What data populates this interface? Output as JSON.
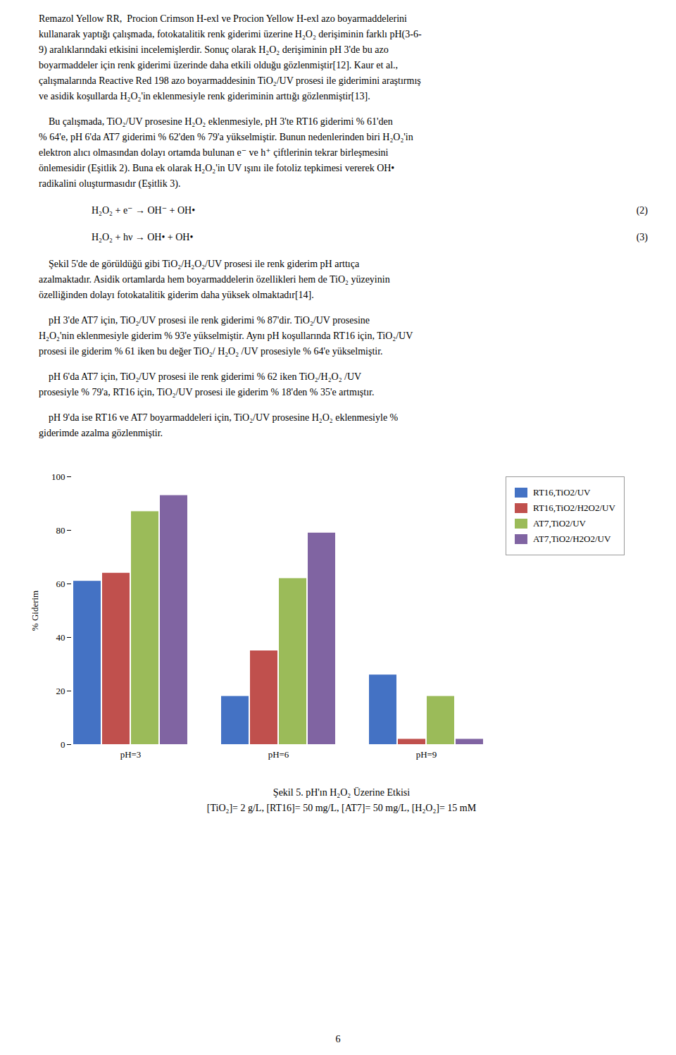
{
  "chart_data": {
    "type": "bar",
    "title": "Şekil 5. pH'ın H₂O₂ Üzerine Etkisi",
    "subtitle": "[TiO₂]= 2 g/L, [RT16]= 50 mg/L, [AT7]= 50 mg/L, [H₂O₂]= 15 mM",
    "categories": [
      "pH=3",
      "pH=6",
      "pH=9"
    ],
    "series": [
      {
        "name": "RT16,TiO2/UV",
        "color": "#4472C4",
        "values": [
          61,
          18,
          26
        ]
      },
      {
        "name": "RT16,TiO2/H2O2/UV",
        "color": "#C0504D",
        "values": [
          64,
          35,
          2
        ]
      },
      {
        "name": "AT7,TiO2/UV",
        "color": "#9BBB59",
        "values": [
          87,
          62,
          18
        ]
      },
      {
        "name": "AT7,TiO2/H2O2/UV",
        "color": "#8064A2",
        "values": [
          93,
          79,
          2
        ]
      }
    ],
    "ylabel": "% Giderim",
    "ylim": [
      0,
      100
    ],
    "yticks": [
      0,
      20,
      40,
      60,
      80,
      100
    ],
    "grid": false,
    "legend": "right",
    "annotations": [
      [
        "Remazol Yellow RR,  Procion Crimson H-exl ve Procion Yellow H-exl azo boyarmaddelerini"
      ],
      [
        "kullanarak yaptığı çalışmada, fotokatalitik renk giderimi üzerine H₂O₂ derişiminin farklı pH(3-6-"
      ],
      [
        "9) aralıklarındaki etkisini incelemişlerdir. Sonuç olarak H₂O₂ derişiminin pH 3'de bu azo"
      ],
      [
        "boyarmaddeler için renk giderimi üzerinde daha etkili olduğu gözlenmiştir[12]. Kaur et al.,"
      ],
      [
        "çalışmalarında Reactive Red 198 azo boyarmaddesinin TiO₂/UV prosesi ile giderimini araştırmış"
      ],
      [
        "ve asidik koşullarda H₂O₂'in eklenmesiyle renk gideriminin arttığı gözlenmiştir[13]."
      ],
      [
        "    Bu çalışmada, TiO₂/UV prosesine H₂O₂ eklenmesiyle, pH 3'te RT16 giderimi % 61'den"
      ],
      [
        "% 64'e, pH 6'da AT7 giderimi % 62'den % 79'a yükselmiştir. Bunun nedenlerinden biri H₂O₂'in"
      ],
      [
        "elektron alıcı olmasından dolayı ortamda bulunan e⁻ ve h⁺ çiftlerinin tekrar birleşmesini"
      ],
      [
        "önlemesidir (Eşitlik 2). Buna ek olarak H₂O₂'in UV ışını ile fotoliz tepkimesi vererek OH•"
      ],
      [
        "radikalini oluşturmasıdır (Eşitlik 3)."
      ],
      [
        "H₂O₂ + e⁻ → OH⁻ + OH•",
        "(2)"
      ],
      [
        "H₂O₂ + hν → OH• + OH•",
        "(3)"
      ],
      [
        "    Şekil 5'de de görüldüğü gibi TiO₂/H₂O₂/UV prosesi ile renk giderim pH arttıça"
      ],
      [
        "azalmaktadır. Asidik ortamlarda hem boyarmaddelerin özellikleri hem de TiO₂ yüzeyinin"
      ],
      [
        "özelliğinden dolayı fotokatalitik giderim daha yüksek olmaktadır[14]."
      ],
      [
        "    pH 3'de AT7 için, TiO₂/UV prosesi ile renk giderimi % 87'dir. TiO₂/UV prosesine"
      ],
      [
        "H₂O₂'nin eklenmesiyle giderim % 93'e yükselmiştir. Aynı pH koşullarında RT16 için, TiO₂/UV"
      ],
      [
        "prosesi ile giderim % 61 iken bu değer TiO₂/ H₂O₂ /UV prosesiyle % 64'e yükselmiştir."
      ],
      [
        "    pH 6'da AT7 için, TiO₂/UV prosesi ile renk giderimi % 62 iken TiO₂/H₂O₂ /UV"
      ],
      [
        "prosesiyle % 79'a, RT16 için, TiO₂/UV prosesi ile giderim % 18'den % 35'e artmıştır."
      ],
      [
        "    pH 9'da ise RT16 ve AT7 boyarmaddeleri için, TiO₂/UV prosesine H₂O₂ eklenmesiyle %"
      ],
      [
        "giderimde azalma gözlenmiştir."
      ]
    ],
    "page_number": "6"
  }
}
